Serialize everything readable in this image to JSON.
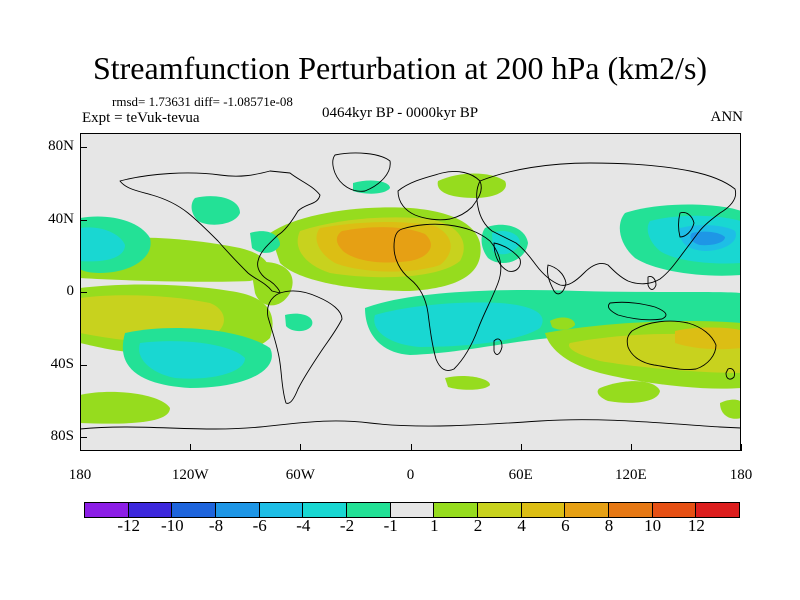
{
  "title": "Streamfunction Perturbation at 200 hPa (km2/s)",
  "stats": "rmsd= 1.73631 diff= -1.08571e-08",
  "experiment": "Expt = teVuk-tevua",
  "period": "0464kyr BP - 0000kyr BP",
  "season": "ANN",
  "map": {
    "lat_ticks": [
      "80N",
      "40N",
      "0",
      "40S",
      "80S"
    ],
    "lon_ticks": [
      "180",
      "120W",
      "60W",
      "0",
      "60E",
      "120E",
      "180"
    ],
    "background_color": "#e6e6e6"
  },
  "colorbar": {
    "colors": [
      "#8c1ee6",
      "#3c28dc",
      "#1e64dc",
      "#1e96e6",
      "#1ebee6",
      "#19d7d2",
      "#23e196",
      "#e6e6e6",
      "#96dc1e",
      "#c8d21e",
      "#dcbe14",
      "#e6a014",
      "#e67814",
      "#e65014",
      "#dc1e1e"
    ],
    "labels": [
      "-12",
      "-10",
      "-8",
      "-6",
      "-4",
      "-2",
      "-1",
      "1",
      "2",
      "4",
      "6",
      "8",
      "10",
      "12"
    ]
  }
}
